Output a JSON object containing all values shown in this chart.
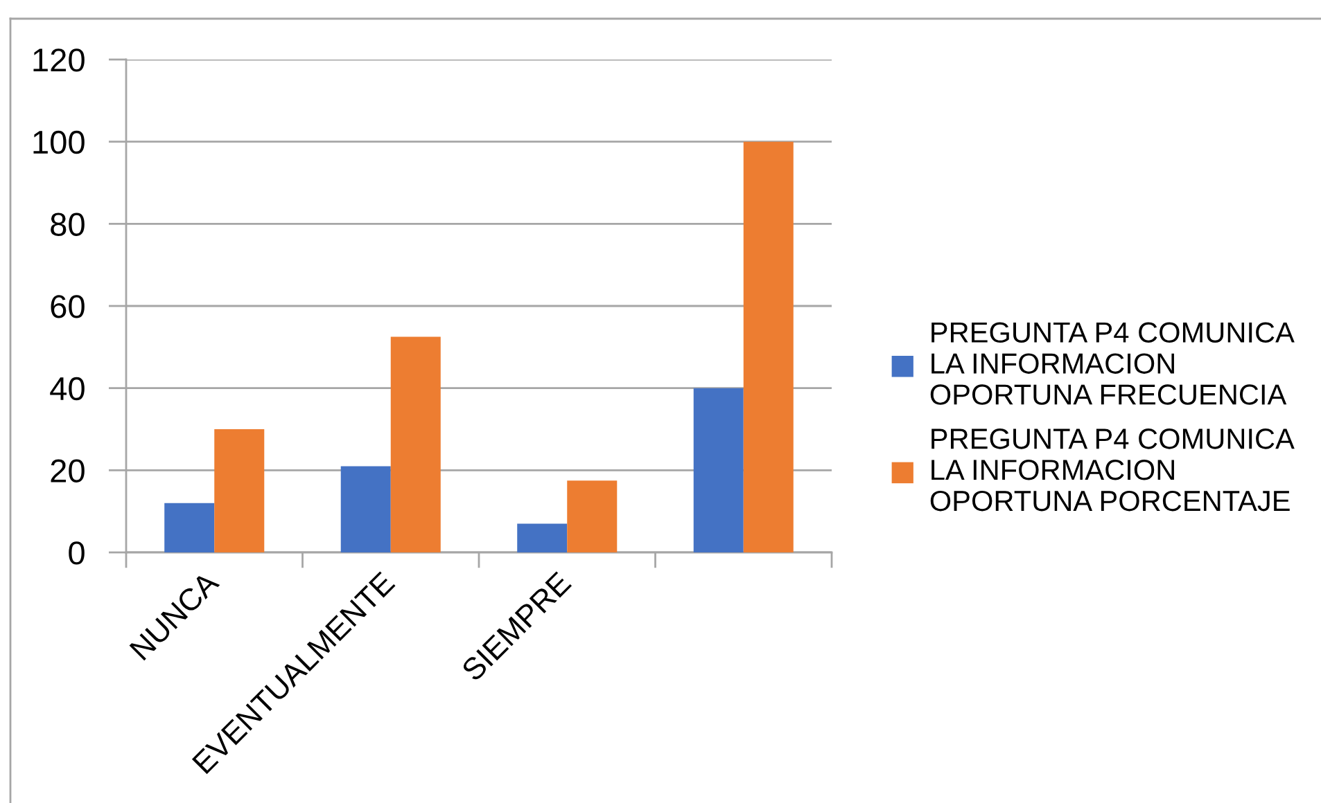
{
  "chart_data": {
    "type": "bar",
    "categories": [
      "NUNCA",
      "EVENTUALMENTE",
      "SIEMPRE",
      null
    ],
    "series": [
      {
        "name": "PREGUNTA P4 COMUNICA LA INFORMACION OPORTUNA FRECUENCIA",
        "color": "#4472c4",
        "values": [
          12,
          21,
          7,
          40
        ]
      },
      {
        "name": "PREGUNTA P4 COMUNICA LA INFORMACION OPORTUNA PORCENTAJE",
        "color": "#ed7d31",
        "values": [
          30,
          52.5,
          17.5,
          100
        ]
      }
    ],
    "ylim": [
      0,
      120
    ],
    "yticks": [
      0,
      20,
      40,
      60,
      80,
      100,
      120
    ],
    "grid": "y",
    "legend": "right"
  }
}
